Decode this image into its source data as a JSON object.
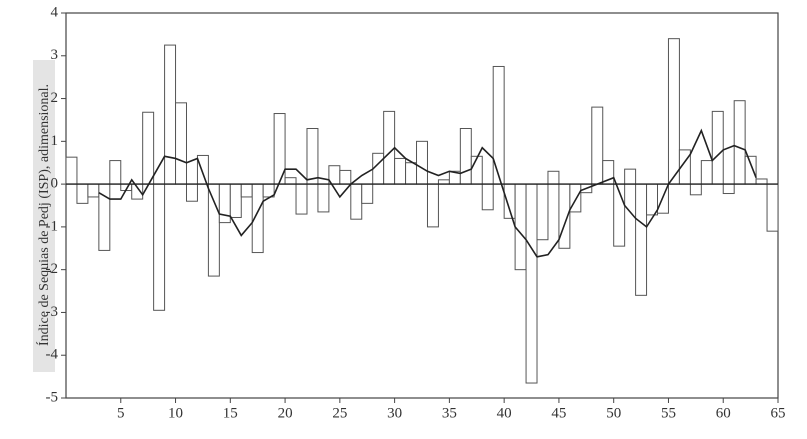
{
  "chart_data": {
    "type": "bar",
    "y_label": "Índice de Sequias de Pedj (ISP), adimensional.",
    "x": [
      1,
      2,
      3,
      4,
      5,
      6,
      7,
      8,
      9,
      10,
      11,
      12,
      13,
      14,
      15,
      16,
      17,
      18,
      19,
      20,
      21,
      22,
      23,
      24,
      25,
      26,
      27,
      28,
      29,
      30,
      31,
      32,
      33,
      34,
      35,
      36,
      37,
      38,
      39,
      40,
      41,
      42,
      43,
      44,
      45,
      46,
      47,
      48,
      49,
      50,
      51,
      52,
      53,
      54,
      55,
      56,
      57,
      58,
      59,
      60,
      61,
      62,
      63,
      64,
      65
    ],
    "series": [
      {
        "type": "bar",
        "color": "#555555",
        "values": [
          0.63,
          -0.45,
          -0.3,
          -1.55,
          0.55,
          -0.15,
          -0.35,
          1.68,
          -2.95,
          3.25,
          1.9,
          -0.4,
          0.67,
          -2.15,
          -0.9,
          -0.78,
          -0.3,
          -1.6,
          -0.3,
          1.65,
          0.15,
          -0.7,
          1.3,
          -0.65,
          0.43,
          0.32,
          -0.82,
          -0.45,
          0.72,
          1.7,
          0.6,
          0.5,
          1.0,
          -1.0,
          0.1,
          0.3,
          1.3,
          0.65,
          -0.6,
          2.75,
          -0.8,
          -2.0,
          -4.65,
          -1.3,
          0.3,
          -1.5,
          -0.65,
          -0.2,
          1.8,
          0.55,
          -1.45,
          0.35,
          -2.6,
          -0.72,
          -0.68,
          3.4,
          0.8,
          -0.25,
          0.55,
          1.7,
          -0.22,
          1.95,
          0.65,
          0.12,
          -1.1
        ]
      },
      {
        "type": "line",
        "color": "#222222",
        "x": [
          3,
          4,
          5,
          6,
          7,
          8,
          9,
          10,
          11,
          12,
          13,
          14,
          15,
          16,
          17,
          18,
          19,
          20,
          21,
          22,
          23,
          24,
          25,
          26,
          27,
          28,
          29,
          30,
          31,
          32,
          33,
          34,
          35,
          36,
          37,
          38,
          39,
          40,
          41,
          42,
          43,
          44,
          45,
          46,
          47,
          48,
          49,
          50,
          51,
          52,
          53,
          54,
          55,
          56,
          57,
          58,
          59,
          60,
          61,
          62,
          63
        ],
        "values": [
          -0.2,
          -0.35,
          -0.35,
          0.1,
          -0.25,
          0.2,
          0.65,
          0.6,
          0.5,
          0.6,
          -0.1,
          -0.7,
          -0.75,
          -1.2,
          -0.9,
          -0.4,
          -0.25,
          0.35,
          0.35,
          0.1,
          0.15,
          0.1,
          -0.3,
          0.0,
          0.2,
          0.35,
          0.6,
          0.85,
          0.6,
          0.45,
          0.3,
          0.2,
          0.3,
          0.25,
          0.35,
          0.85,
          0.6,
          -0.2,
          -1.0,
          -1.3,
          -1.7,
          -1.65,
          -1.3,
          -0.6,
          -0.15,
          -0.05,
          0.05,
          0.15,
          -0.5,
          -0.8,
          -1.0,
          -0.6,
          0.0,
          0.35,
          0.7,
          1.25,
          0.55,
          0.8,
          0.9,
          0.8,
          0.15
        ]
      }
    ],
    "xlim": [
      0,
      65
    ],
    "xticks": [
      5,
      10,
      15,
      20,
      25,
      30,
      35,
      40,
      45,
      50,
      55,
      60,
      65
    ],
    "ylim": [
      -5,
      4
    ],
    "yticks": [
      4,
      3,
      2,
      1,
      0,
      -1,
      -2,
      -3,
      -4,
      -5
    ]
  }
}
